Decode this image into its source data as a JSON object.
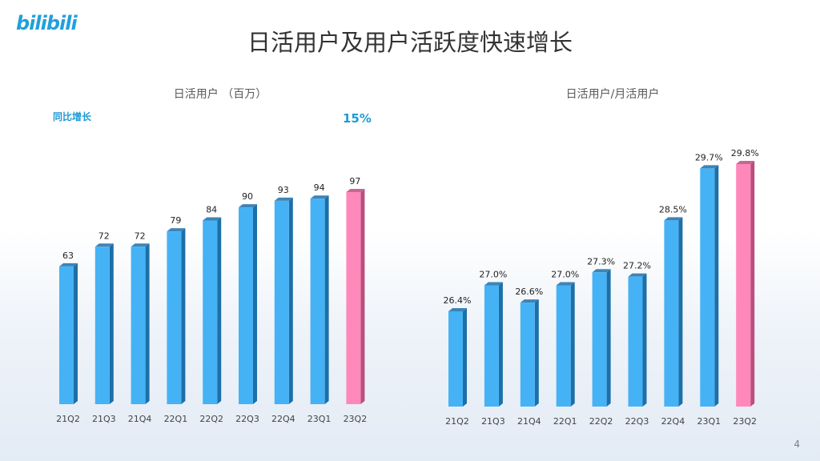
{
  "brand": {
    "logo_text": "bilibili"
  },
  "slide": {
    "title": "日活用户及用户活跃度快速增长",
    "page_number": "4"
  },
  "colors": {
    "bar": "#45b2f5",
    "bar_side": "#1d6fa8",
    "highlight": "#ff88bb",
    "highlight_side": "#b94f7e",
    "accent": "#1e9ad6"
  },
  "chart_data": [
    {
      "type": "bar",
      "title": "日活用户 （百万）",
      "annotation_label": "同比增长",
      "annotation_value": "15%",
      "categories": [
        "21Q2",
        "21Q3",
        "21Q4",
        "22Q1",
        "22Q2",
        "22Q3",
        "22Q4",
        "23Q1",
        "23Q2"
      ],
      "values": [
        63,
        72,
        72,
        79,
        84,
        90,
        93,
        94,
        97
      ],
      "data_labels": [
        "63",
        "72",
        "72",
        "79",
        "84",
        "90",
        "93",
        "94",
        "97"
      ],
      "highlight_index": 8
    },
    {
      "type": "bar",
      "title": "日活用户/月活用户",
      "categories": [
        "21Q2",
        "21Q3",
        "21Q4",
        "22Q1",
        "22Q2",
        "22Q3",
        "22Q4",
        "23Q1",
        "23Q2"
      ],
      "values": [
        26.4,
        27.0,
        26.6,
        27.0,
        27.3,
        27.2,
        28.5,
        29.7,
        29.8
      ],
      "data_labels": [
        "26.4%",
        "27.0%",
        "26.6%",
        "27.0%",
        "27.3%",
        "27.2%",
        "28.5%",
        "29.7%",
        "29.8%"
      ],
      "highlight_index": 8
    }
  ]
}
